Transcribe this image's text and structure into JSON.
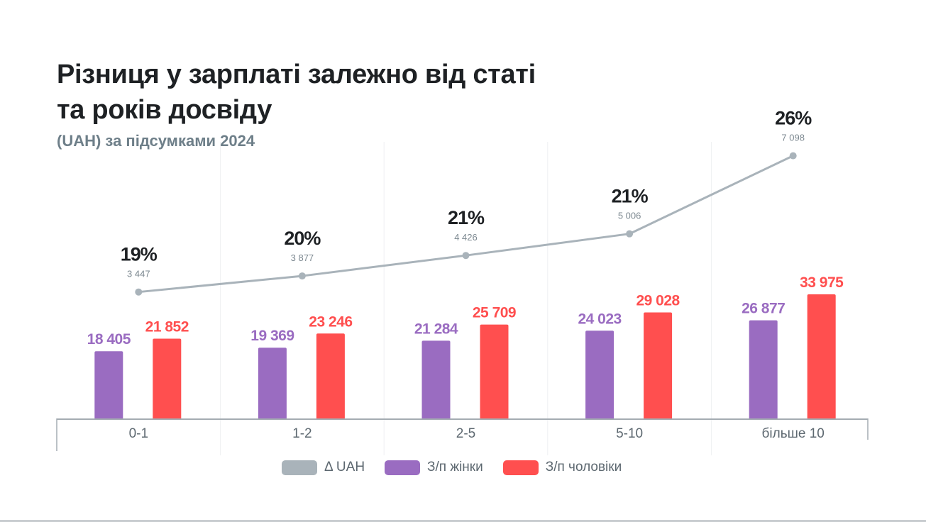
{
  "header": {
    "title_line1": "Різниця у зарплаті залежно від статі",
    "title_line2": "та років досвіду",
    "subtitle": "(UAH) за підсумками 2024"
  },
  "colors": {
    "women": "#9a6cc1",
    "men": "#ff4f4f",
    "delta": "#a9b3ba",
    "axis": "#a4acb2",
    "grid": "#eef0f2",
    "title": "#1e2124",
    "subtitle": "#6e7f89"
  },
  "legend": [
    {
      "label": "Δ UAH",
      "color": "#a9b3ba"
    },
    {
      "label": "З/п жінки",
      "color": "#9a6cc1"
    },
    {
      "label": "З/п чоловіки",
      "color": "#ff4f4f"
    }
  ],
  "chart_data": {
    "type": "bar",
    "title": "Різниця у зарплаті залежно від статі та років досвіду",
    "subtitle": "(UAH) за підсумками 2024",
    "xlabel": "",
    "ylabel": "",
    "categories": [
      "0-1",
      "1-2",
      "2-5",
      "5-10",
      "більше 10"
    ],
    "series": [
      {
        "name": "З/п жінки",
        "type": "bar",
        "values": [
          18405,
          19369,
          21284,
          24023,
          26877
        ],
        "labels": [
          "18 405",
          "19 369",
          "21 284",
          "24 023",
          "26 877"
        ]
      },
      {
        "name": "З/п чоловіки",
        "type": "bar",
        "values": [
          21852,
          23246,
          25709,
          29028,
          33975
        ],
        "labels": [
          "21 852",
          "23 246",
          "25 709",
          "29 028",
          "33 975"
        ]
      },
      {
        "name": "Δ UAH",
        "type": "line",
        "values": [
          3447,
          3877,
          4426,
          5006,
          7098
        ],
        "labels": [
          "3 447",
          "3 877",
          "4 426",
          "5 006",
          "7 098"
        ],
        "percent_labels": [
          "19%",
          "20%",
          "21%",
          "21%",
          "26%"
        ]
      }
    ],
    "ylim": [
      0,
      35000
    ],
    "grid": true,
    "legend_position": "bottom"
  }
}
